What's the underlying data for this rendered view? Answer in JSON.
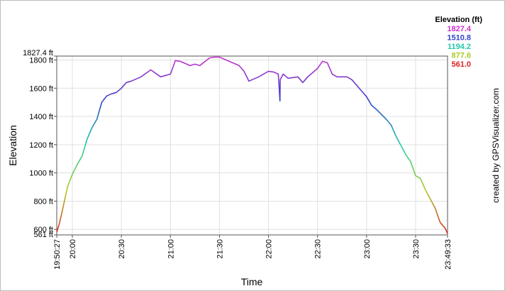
{
  "chart_data": {
    "type": "line",
    "xlabel": "Time",
    "ylabel": "Elevation",
    "credit": "created by GPSVisualizer.com",
    "x_unit": "HH:MM (h)",
    "xlim": [
      19.8408,
      23.8258
    ],
    "ylim": [
      561,
      1827.4
    ],
    "grid": true,
    "x_ticks": [
      {
        "v": 19.8408,
        "label": "19:50:27"
      },
      {
        "v": 20.0,
        "label": "20:00"
      },
      {
        "v": 20.5,
        "label": "20:30"
      },
      {
        "v": 21.0,
        "label": "21:00"
      },
      {
        "v": 21.5,
        "label": "21:30"
      },
      {
        "v": 22.0,
        "label": "22:00"
      },
      {
        "v": 22.5,
        "label": "22:30"
      },
      {
        "v": 23.0,
        "label": "23:00"
      },
      {
        "v": 23.5,
        "label": "23:30"
      },
      {
        "v": 23.8258,
        "label": "23:49:33"
      }
    ],
    "y_ticks": [
      {
        "v": 561,
        "label": "561 ft"
      },
      {
        "v": 600,
        "label": "600 ft"
      },
      {
        "v": 800,
        "label": "800 ft"
      },
      {
        "v": 1000,
        "label": "1000 ft"
      },
      {
        "v": 1200,
        "label": "1200 ft"
      },
      {
        "v": 1400,
        "label": "1400 ft"
      },
      {
        "v": 1600,
        "label": "1600 ft"
      },
      {
        "v": 1800,
        "label": "1800 ft"
      },
      {
        "v": 1827.4,
        "label": "1827.4 ft"
      }
    ],
    "legend": {
      "title": "Elevation (ft)",
      "placement": "top-right",
      "entries": [
        {
          "label": "1827.4",
          "color": "#cc33cc"
        },
        {
          "label": "1510.8",
          "color": "#3344cc"
        },
        {
          "label": "1194.2",
          "color": "#22ccaa"
        },
        {
          "label": "877.6",
          "color": "#aacc22"
        },
        {
          "label": "561.0",
          "color": "#dd2222"
        }
      ]
    },
    "series": [
      {
        "x": [
          19.8408,
          19.8667,
          19.9,
          19.95,
          20.0,
          20.05,
          20.1,
          20.15,
          20.2,
          20.25,
          20.3,
          20.35,
          20.4,
          20.45,
          20.5,
          20.55,
          20.6,
          20.7,
          20.8,
          20.9,
          20.95,
          21.0,
          21.05,
          21.1,
          21.2,
          21.25,
          21.3,
          21.4,
          21.45,
          21.5,
          21.6,
          21.7,
          21.75,
          21.8,
          21.9,
          22.0,
          22.05,
          22.1,
          22.1167,
          22.12,
          22.15,
          22.2,
          22.3,
          22.35,
          22.4,
          22.45,
          22.5,
          22.55,
          22.6,
          22.65,
          22.7,
          22.8,
          22.85,
          22.9,
          23.0,
          23.05,
          23.1,
          23.2,
          23.25,
          23.3,
          23.4,
          23.45,
          23.5,
          23.55,
          23.6,
          23.7,
          23.75,
          23.8,
          23.8258
        ],
        "y": [
          580,
          640,
          740,
          900,
          990,
          1060,
          1120,
          1240,
          1320,
          1380,
          1500,
          1545,
          1560,
          1570,
          1600,
          1640,
          1650,
          1680,
          1730,
          1680,
          1690,
          1700,
          1795,
          1790,
          1760,
          1770,
          1760,
          1815,
          1820,
          1820,
          1790,
          1760,
          1720,
          1650,
          1680,
          1720,
          1715,
          1700,
          1510,
          1660,
          1700,
          1670,
          1680,
          1640,
          1680,
          1710,
          1740,
          1790,
          1780,
          1700,
          1680,
          1680,
          1660,
          1620,
          1540,
          1480,
          1450,
          1380,
          1340,
          1260,
          1130,
          1080,
          980,
          960,
          880,
          750,
          650,
          610,
          570
        ]
      }
    ]
  }
}
